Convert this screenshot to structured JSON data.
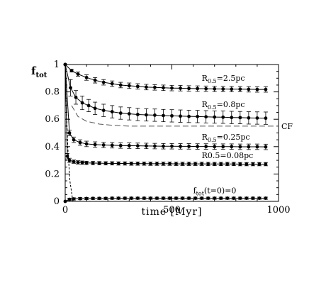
{
  "chart_data": {
    "type": "line",
    "xlabel": "time [Myr]",
    "ylabel": "f",
    "ylabel_sub": "tot",
    "xlim": [
      0,
      1000
    ],
    "ylim": [
      0,
      1
    ],
    "x_ticks": [
      0,
      500,
      1000
    ],
    "x_tick_labels": [
      "0",
      "500",
      "1000"
    ],
    "y_ticks": [
      0,
      0.2,
      0.4,
      0.6,
      0.8,
      1
    ],
    "y_tick_labels": [
      "0",
      "0.2",
      "0.4",
      "0.6",
      "0.8",
      "1"
    ],
    "grid": false,
    "series": [
      {
        "name": "R0.5=2.5pc",
        "label_main": "R",
        "label_sub": "0.5",
        "label_rest": "=2.5pc",
        "x": [
          0,
          30,
          60,
          100,
          140,
          180,
          220,
          260,
          300,
          340,
          380,
          420,
          460,
          500,
          540,
          580,
          620,
          660,
          700,
          740,
          780,
          820,
          860,
          900,
          940
        ],
        "y": [
          1.0,
          0.955,
          0.93,
          0.905,
          0.885,
          0.87,
          0.86,
          0.85,
          0.845,
          0.84,
          0.835,
          0.833,
          0.83,
          0.828,
          0.827,
          0.825,
          0.824,
          0.823,
          0.822,
          0.821,
          0.82,
          0.82,
          0.819,
          0.818,
          0.818
        ],
        "err": [
          0.0,
          0.01,
          0.015,
          0.02,
          0.02,
          0.02,
          0.02,
          0.02,
          0.02,
          0.02,
          0.02,
          0.02,
          0.02,
          0.02,
          0.02,
          0.02,
          0.02,
          0.02,
          0.02,
          0.02,
          0.02,
          0.02,
          0.02,
          0.02,
          0.02
        ]
      },
      {
        "name": "R0.5=0.8pc",
        "label_main": "R",
        "label_sub": "0.5",
        "label_rest": "=0.8pc",
        "x": [
          0,
          25,
          50,
          80,
          110,
          140,
          180,
          220,
          260,
          300,
          340,
          380,
          420,
          460,
          500,
          540,
          580,
          620,
          660,
          700,
          740,
          780,
          820,
          860,
          900,
          940
        ],
        "y": [
          1.0,
          0.83,
          0.76,
          0.72,
          0.7,
          0.68,
          0.665,
          0.655,
          0.645,
          0.64,
          0.635,
          0.632,
          0.63,
          0.627,
          0.625,
          0.623,
          0.621,
          0.62,
          0.618,
          0.616,
          0.615,
          0.613,
          0.612,
          0.61,
          0.609,
          0.608
        ],
        "err": [
          0.0,
          0.06,
          0.05,
          0.05,
          0.045,
          0.045,
          0.045,
          0.045,
          0.045,
          0.045,
          0.045,
          0.045,
          0.045,
          0.045,
          0.045,
          0.045,
          0.045,
          0.045,
          0.045,
          0.045,
          0.045,
          0.045,
          0.045,
          0.045,
          0.045,
          0.045
        ]
      },
      {
        "name": "R0.5=0.25pc",
        "label_main": "R",
        "label_sub": "0.5",
        "label_rest": "=0.25pc",
        "x": [
          0,
          20,
          40,
          70,
          100,
          140,
          180,
          220,
          260,
          300,
          340,
          380,
          420,
          460,
          500,
          540,
          580,
          620,
          660,
          700,
          740,
          780,
          820,
          860,
          900,
          940
        ],
        "y": [
          1.0,
          0.5,
          0.45,
          0.43,
          0.42,
          0.415,
          0.412,
          0.41,
          0.408,
          0.407,
          0.406,
          0.405,
          0.404,
          0.403,
          0.403,
          0.402,
          0.402,
          0.401,
          0.401,
          0.4,
          0.4,
          0.4,
          0.399,
          0.399,
          0.399,
          0.398
        ],
        "err": [
          0.0,
          0.02,
          0.02,
          0.02,
          0.02,
          0.02,
          0.02,
          0.02,
          0.02,
          0.02,
          0.02,
          0.02,
          0.02,
          0.02,
          0.02,
          0.02,
          0.02,
          0.02,
          0.02,
          0.02,
          0.02,
          0.02,
          0.02,
          0.02,
          0.02,
          0.02
        ]
      },
      {
        "name": "R0.5=0.08pc",
        "label_main": "R0.5=0.08pc",
        "label_sub": "",
        "label_rest": "",
        "x": [
          0,
          10,
          20,
          40,
          60,
          80,
          100,
          130,
          160,
          190,
          220,
          250,
          280,
          310,
          340,
          370,
          400,
          430,
          460,
          490,
          520,
          550,
          580,
          610,
          640,
          670,
          700,
          730,
          760,
          790,
          820,
          850,
          880,
          910,
          940
        ],
        "y": [
          1.0,
          0.33,
          0.3,
          0.29,
          0.285,
          0.283,
          0.281,
          0.28,
          0.279,
          0.278,
          0.278,
          0.277,
          0.277,
          0.276,
          0.276,
          0.276,
          0.275,
          0.275,
          0.275,
          0.275,
          0.274,
          0.274,
          0.274,
          0.274,
          0.274,
          0.273,
          0.273,
          0.273,
          0.273,
          0.273,
          0.272,
          0.272,
          0.272,
          0.272,
          0.272
        ],
        "err": [
          0.0,
          0.02,
          0.015,
          0.012,
          0.012,
          0.012,
          0.012,
          0.012,
          0.012,
          0.012,
          0.012,
          0.012,
          0.012,
          0.012,
          0.012,
          0.012,
          0.012,
          0.012,
          0.012,
          0.012,
          0.012,
          0.012,
          0.012,
          0.012,
          0.012,
          0.012,
          0.012,
          0.012,
          0.012,
          0.012,
          0.012,
          0.012,
          0.012,
          0.012,
          0.012
        ]
      },
      {
        "name": "ftot(t=0)=0",
        "label_main": "f",
        "label_sub": "tot",
        "label_rest": "(t=0)=0",
        "x": [
          0,
          20,
          40,
          70,
          100,
          130,
          160,
          190,
          220,
          250,
          280,
          310,
          340,
          370,
          400,
          430,
          460,
          490,
          520,
          550,
          580,
          610,
          640,
          670,
          700,
          730,
          760,
          790,
          820,
          850,
          880,
          910,
          940
        ],
        "y": [
          0.0,
          0.015,
          0.018,
          0.02,
          0.021,
          0.022,
          0.022,
          0.022,
          0.023,
          0.023,
          0.023,
          0.023,
          0.023,
          0.023,
          0.023,
          0.023,
          0.023,
          0.023,
          0.023,
          0.023,
          0.023,
          0.023,
          0.023,
          0.023,
          0.023,
          0.023,
          0.023,
          0.023,
          0.023,
          0.023,
          0.023,
          0.023,
          0.023
        ],
        "err": [
          0.0,
          0.008,
          0.008,
          0.008,
          0.008,
          0.008,
          0.008,
          0.008,
          0.008,
          0.008,
          0.008,
          0.008,
          0.008,
          0.008,
          0.008,
          0.008,
          0.008,
          0.008,
          0.008,
          0.008,
          0.008,
          0.008,
          0.008,
          0.008,
          0.008,
          0.008,
          0.008,
          0.008,
          0.008,
          0.008,
          0.008,
          0.008,
          0.008
        ]
      }
    ],
    "reference_line": {
      "label": "CF",
      "x": [
        30,
        60,
        100,
        160,
        230,
        300,
        1000
      ],
      "y": [
        0.7,
        0.62,
        0.585,
        0.565,
        0.555,
        0.55,
        0.55
      ]
    },
    "initial_drop": {
      "x": [
        0,
        5,
        12,
        22,
        36
      ],
      "y": [
        1.0,
        0.7,
        0.4,
        0.15,
        0.0
      ]
    }
  }
}
